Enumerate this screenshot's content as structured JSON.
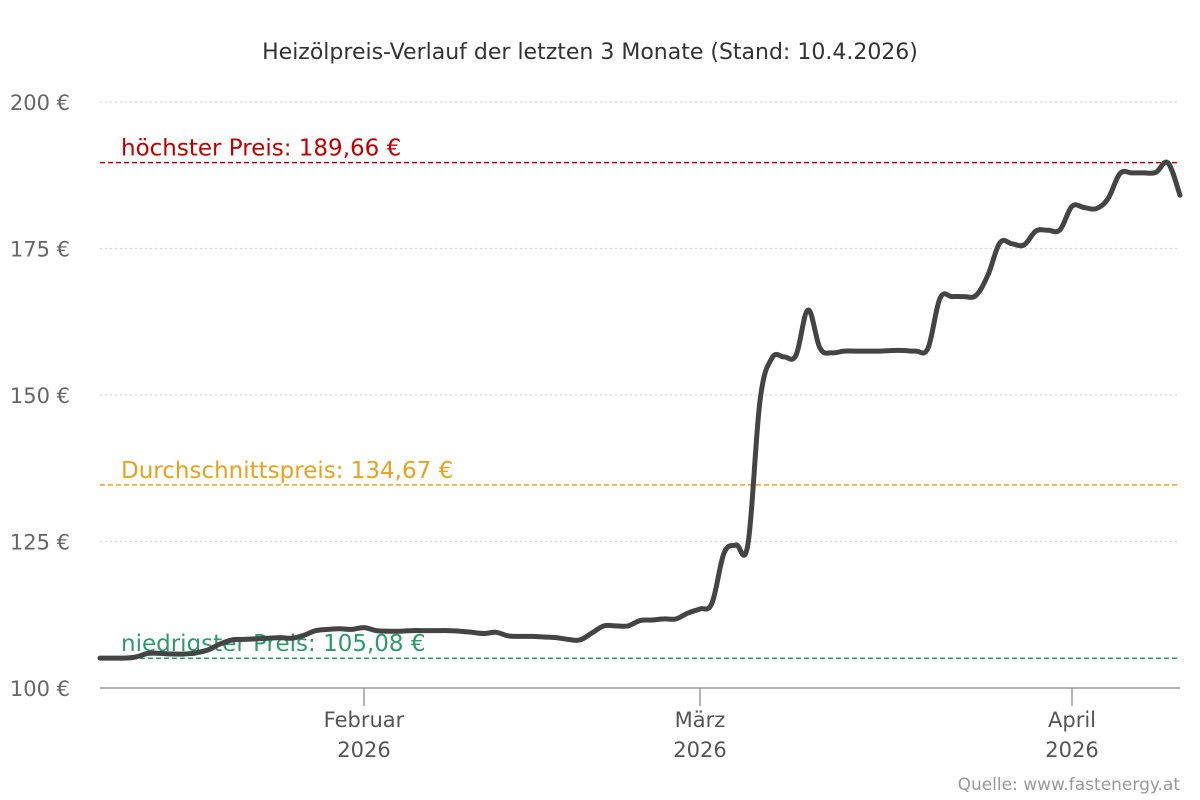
{
  "title": "Heizölpreis-Verlauf der letzten 3 Monate (Stand: 10.4.2026)",
  "source": "Quelle: www.fastenergy.at",
  "chart_data": {
    "type": "line",
    "title": "Heizölpreis-Verlauf der letzten 3 Monate (Stand: 10.4.2026)",
    "xlabel": "",
    "ylabel": "",
    "ylim": [
      100,
      200
    ],
    "y_ticks": [
      100,
      125,
      150,
      175,
      200
    ],
    "y_tick_labels": [
      "100 €",
      "125 €",
      "150 €",
      "175 €",
      "200 €"
    ],
    "grid": true,
    "x_range": [
      "2026-01-10",
      "2026-04-10"
    ],
    "x_ticks": [
      {
        "date": "2026-02-01",
        "label1": "Februar",
        "label2": "2026"
      },
      {
        "date": "2026-03-01",
        "label1": "März",
        "label2": "2026"
      },
      {
        "date": "2026-04-01",
        "label1": "April",
        "label2": "2026"
      }
    ],
    "reference_lines": [
      {
        "name": "hoechster",
        "label": "höchster Preis: 189,66 €",
        "value": 189.66,
        "color": "#c00000"
      },
      {
        "name": "durchschnitt",
        "label": "Durchschnittspreis: 134,67 €",
        "value": 134.67,
        "color": "#e8a21b"
      },
      {
        "name": "niedrigster",
        "label": "niedrigster Preis: 105,08 €",
        "value": 105.08,
        "color": "#2e9a6a"
      }
    ],
    "line_color": "#444444",
    "series": [
      {
        "x": [
          "2026-01-10",
          "2026-01-12",
          "2026-01-13",
          "2026-01-14",
          "2026-01-15",
          "2026-01-16",
          "2026-01-17",
          "2026-01-18",
          "2026-01-19",
          "2026-01-20",
          "2026-01-21",
          "2026-01-22",
          "2026-01-23",
          "2026-01-24",
          "2026-01-25",
          "2026-01-26",
          "2026-01-27",
          "2026-01-28",
          "2026-01-29",
          "2026-01-30",
          "2026-01-31",
          "2026-02-01",
          "2026-02-02",
          "2026-02-03",
          "2026-02-04",
          "2026-02-05",
          "2026-02-06",
          "2026-02-07",
          "2026-02-08",
          "2026-02-09",
          "2026-02-10",
          "2026-02-11",
          "2026-02-12",
          "2026-02-13",
          "2026-02-14",
          "2026-02-15",
          "2026-02-16",
          "2026-02-17",
          "2026-02-18",
          "2026-02-19",
          "2026-02-20",
          "2026-02-21",
          "2026-02-22",
          "2026-02-23",
          "2026-02-24",
          "2026-02-25",
          "2026-02-26",
          "2026-02-27",
          "2026-02-28",
          "2026-03-01",
          "2026-03-02",
          "2026-03-03",
          "2026-03-04",
          "2026-03-05",
          "2026-03-06",
          "2026-03-07",
          "2026-03-08",
          "2026-03-09",
          "2026-03-10",
          "2026-03-11",
          "2026-03-12",
          "2026-03-13",
          "2026-03-14",
          "2026-03-15",
          "2026-03-16",
          "2026-03-17",
          "2026-03-18",
          "2026-03-19",
          "2026-03-20",
          "2026-03-21",
          "2026-03-22",
          "2026-03-23",
          "2026-03-24",
          "2026-03-25",
          "2026-03-26",
          "2026-03-27",
          "2026-03-28",
          "2026-03-29",
          "2026-03-30",
          "2026-03-31",
          "2026-04-01",
          "2026-04-02",
          "2026-04-03",
          "2026-04-04",
          "2026-04-05",
          "2026-04-06",
          "2026-04-07",
          "2026-04-08",
          "2026-04-09",
          "2026-04-10"
        ],
        "values": [
          105.1,
          105.1,
          105.3,
          105.9,
          105.9,
          105.8,
          105.8,
          106.0,
          106.5,
          107.5,
          108.2,
          108.3,
          108.4,
          108.5,
          108.6,
          108.5,
          109.0,
          109.8,
          110.0,
          110.1,
          110.0,
          110.3,
          109.8,
          109.7,
          109.7,
          109.8,
          109.8,
          109.8,
          109.8,
          109.7,
          109.5,
          109.3,
          109.5,
          108.9,
          108.8,
          108.8,
          108.7,
          108.6,
          108.3,
          108.2,
          109.4,
          110.6,
          110.6,
          110.6,
          111.5,
          111.6,
          111.8,
          111.8,
          112.8,
          113.5,
          114.5,
          123.0,
          124.4,
          124.6,
          149.0,
          156.3,
          156.5,
          156.8,
          164.5,
          158.0,
          157.2,
          157.5,
          157.5,
          157.5,
          157.5,
          157.6,
          157.6,
          157.5,
          158.0,
          166.5,
          166.8,
          166.8,
          167.0,
          170.5,
          176.0,
          175.8,
          175.6,
          178.0,
          178.1,
          178.2,
          182.2,
          182.0,
          181.8,
          183.5,
          187.8,
          187.9,
          187.9,
          188.0,
          189.6,
          184.1
        ]
      }
    ]
  }
}
